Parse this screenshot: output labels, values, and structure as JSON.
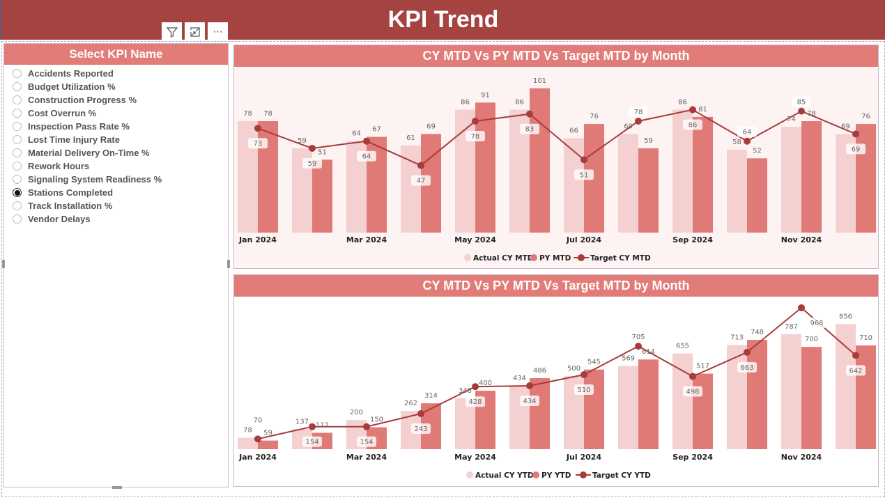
{
  "header": {
    "title": "KPI Trend"
  },
  "visual_tools": {
    "filter_icon": "filter-icon",
    "focus_icon": "focus-mode-icon",
    "more_icon": "more-options-icon",
    "more_label": "···"
  },
  "slicer": {
    "title": "Select KPI Name",
    "selected": "Stations Completed",
    "items": [
      "Accidents Reported",
      "Budget Utilization %",
      "Construction Progress %",
      "Cost Overrun %",
      "Inspection Pass Rate %",
      "Lost Time Injury Rate",
      "Material Delivery On-Time %",
      "Rework Hours",
      "Signaling System Readiness %",
      "Stations Completed",
      "Track Installation %",
      "Vendor Delays"
    ]
  },
  "colors": {
    "header": "#a54341",
    "panel_header": "#e27c78",
    "actual": "#f5d0d0",
    "py": "#e07a76",
    "target": "#a83b3b"
  },
  "chart_data": [
    {
      "type": "bar+line",
      "title": "CY MTD Vs PY MTD Vs Target MTD by Month",
      "x_tick_labels": [
        "Jan 2024",
        "Mar 2024",
        "May 2024",
        "Jul 2024",
        "Sep 2024",
        "Nov 2024"
      ],
      "ylim": [
        0,
        116
      ],
      "grid": false,
      "legend_position": "bottom-center",
      "series": [
        {
          "name": "Actual CY MTD",
          "kind": "bar",
          "values": [
            78,
            59,
            64,
            61,
            86,
            86,
            66,
            69,
            86,
            58,
            74,
            69
          ]
        },
        {
          "name": "PY MTD",
          "kind": "bar",
          "values": [
            78,
            51,
            67,
            69,
            91,
            101,
            76,
            59,
            81,
            52,
            78,
            76
          ]
        },
        {
          "name": "Target CY MTD",
          "kind": "line",
          "values": [
            73,
            59,
            64,
            47,
            78,
            83,
            51,
            78,
            86,
            64,
            85,
            69
          ]
        }
      ]
    },
    {
      "type": "bar+line",
      "title": "CY MTD Vs PY MTD Vs Target MTD by Month",
      "x_tick_labels": [
        "Jan 2024",
        "Mar 2024",
        "May 2024",
        "Jul 2024",
        "Sep 2024",
        "Nov 2024"
      ],
      "ylim": [
        0,
        1044
      ],
      "grid": false,
      "legend_position": "bottom-center",
      "series": [
        {
          "name": "Actual CY YTD",
          "kind": "bar",
          "values": [
            78,
            137,
            200,
            262,
            348,
            434,
            500,
            569,
            655,
            713,
            787,
            856
          ]
        },
        {
          "name": "PY YTD",
          "kind": "bar",
          "values": [
            59,
            112,
            150,
            314,
            400,
            486,
            545,
            614,
            517,
            748,
            700,
            710
          ]
        },
        {
          "name": "Target CY YTD",
          "kind": "line",
          "values": [
            70,
            154,
            154,
            243,
            428,
            434,
            510,
            705,
            498,
            663,
            968,
            642
          ]
        }
      ]
    }
  ]
}
